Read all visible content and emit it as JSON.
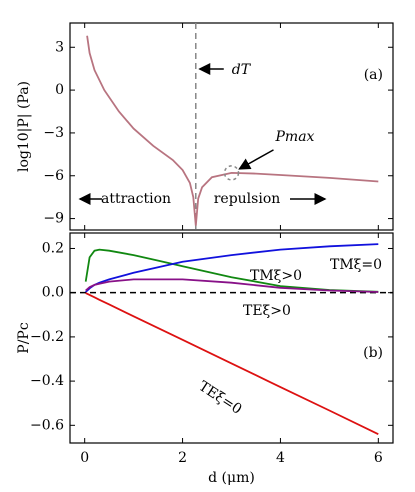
{
  "chart_data": [
    {
      "type": "line",
      "ylabel": "log10|P| (Pa)",
      "panel_label": "(a)",
      "x": [
        0.05,
        0.1,
        0.2,
        0.4,
        0.7,
        1.0,
        1.4,
        1.8,
        2.0,
        2.15,
        2.22,
        2.27,
        2.32,
        2.4,
        2.6,
        3.0,
        3.5,
        4,
        5,
        6
      ],
      "series": [
        {
          "name": null,
          "color": "#b87480",
          "values": [
            3.8,
            2.6,
            1.4,
            0,
            -1.5,
            -2.7,
            -3.9,
            -4.9,
            -5.6,
            -6.5,
            -7.5,
            -9.5,
            -7.6,
            -6.8,
            -6.1,
            -5.8,
            -5.85,
            -5.95,
            -6.15,
            -6.4
          ]
        }
      ],
      "xlim": [
        -0.3,
        6.3
      ],
      "ylim": [
        -9.8,
        4.7
      ],
      "xticks": [
        0,
        2,
        4,
        6
      ],
      "yticks": [
        3,
        0,
        {
          "value": -3,
          "label": "−3"
        },
        {
          "value": -6,
          "label": "−6"
        },
        {
          "value": -9,
          "label": "−9"
        }
      ],
      "vline": {
        "x": 2.27,
        "label": "dT"
      },
      "peak": {
        "x": 3.0,
        "y": -5.8,
        "label": "Pmax"
      },
      "annotations": [
        "attraction",
        "repulsion"
      ]
    },
    {
      "type": "line",
      "ylabel": "P/Pc",
      "xlabel": "d (μm)",
      "panel_label": "(b)",
      "x": [
        0.02,
        0.1,
        0.2,
        0.3,
        0.5,
        1,
        1.5,
        2,
        3,
        4,
        5,
        6
      ],
      "series": [
        {
          "name": "TMξ>0",
          "color": "#118811",
          "values": [
            0.05,
            0.16,
            0.19,
            0.195,
            0.19,
            0.17,
            0.145,
            0.12,
            0.07,
            0.03,
            0.012,
            0.004
          ]
        },
        {
          "name": "TMξ=0",
          "color": "#1111dd",
          "values": [
            0.003,
            0.02,
            0.035,
            0.045,
            0.06,
            0.09,
            0.115,
            0.14,
            0.17,
            0.195,
            0.21,
            0.22
          ]
        },
        {
          "name": "TEξ>0",
          "color": "#881188",
          "values": [
            0.01,
            0.025,
            0.035,
            0.04,
            0.05,
            0.06,
            0.06,
            0.06,
            0.045,
            0.022,
            0.01,
            0.003
          ]
        },
        {
          "name": "TEξ=0",
          "color": "#dd1111",
          "values": [
            -0.002,
            -0.01,
            -0.021,
            -0.032,
            -0.053,
            -0.107,
            -0.16,
            -0.213,
            -0.32,
            -0.427,
            -0.533,
            -0.64
          ]
        }
      ],
      "xlim": [
        -0.3,
        6.3
      ],
      "ylim": [
        -0.68,
        0.27
      ],
      "xticks": [
        0,
        2,
        4,
        6
      ],
      "yticks": [
        0.2,
        {
          "value": 0,
          "label": "0.0"
        },
        {
          "value": -0.2,
          "label": "−0.2"
        },
        {
          "value": -0.4,
          "label": "−0.4"
        },
        {
          "value": -0.6,
          "label": "−0.6"
        }
      ],
      "hline": 0
    }
  ]
}
